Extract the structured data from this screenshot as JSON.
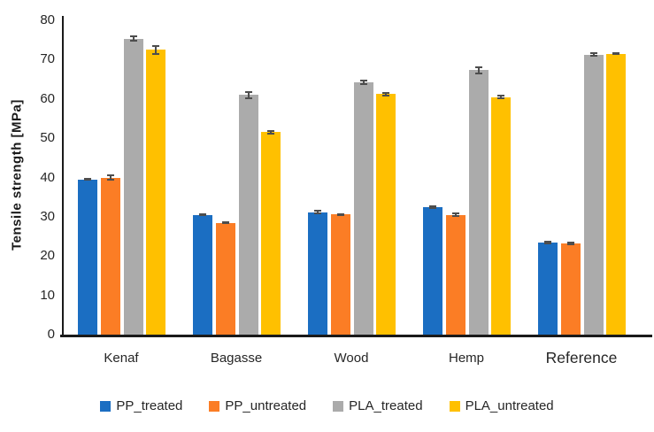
{
  "chart_data": {
    "type": "bar",
    "title": "",
    "xlabel": "",
    "ylabel": "Tensile strength [MPa]",
    "ylim": [
      0,
      80
    ],
    "ytick_step": 10,
    "yticks": [
      0,
      10,
      20,
      30,
      40,
      50,
      60,
      70,
      80
    ],
    "grid": false,
    "legend_position": "bottom",
    "error_bars": true,
    "error_bar_color": "#4d4d4d",
    "axis_color": "#1a1a1a",
    "categories": [
      "Kenaf",
      "Bagasse",
      "Wood",
      "Hemp",
      "Reference"
    ],
    "series": [
      {
        "name": "PP_treated",
        "color": "#1B6EC2",
        "values": [
          39.5,
          30.5,
          31.2,
          32.5,
          23.4
        ],
        "errors": [
          0.4,
          0.4,
          0.5,
          0.5,
          0.5
        ]
      },
      {
        "name": "PP_untreated",
        "color": "#FB7D25",
        "values": [
          40.0,
          28.5,
          30.6,
          30.5,
          23.2
        ],
        "errors": [
          0.8,
          0.4,
          0.3,
          0.5,
          0.4
        ]
      },
      {
        "name": "PLA_treated",
        "color": "#ABABAB",
        "values": [
          75.3,
          61.0,
          64.2,
          67.3,
          71.3
        ],
        "errors": [
          0.8,
          1.0,
          0.7,
          1.0,
          0.5
        ]
      },
      {
        "name": "PLA_untreated",
        "color": "#FFC000",
        "values": [
          72.5,
          51.5,
          61.2,
          60.5,
          71.5
        ],
        "errors": [
          1.3,
          0.5,
          0.5,
          0.5,
          0.4
        ]
      }
    ]
  }
}
